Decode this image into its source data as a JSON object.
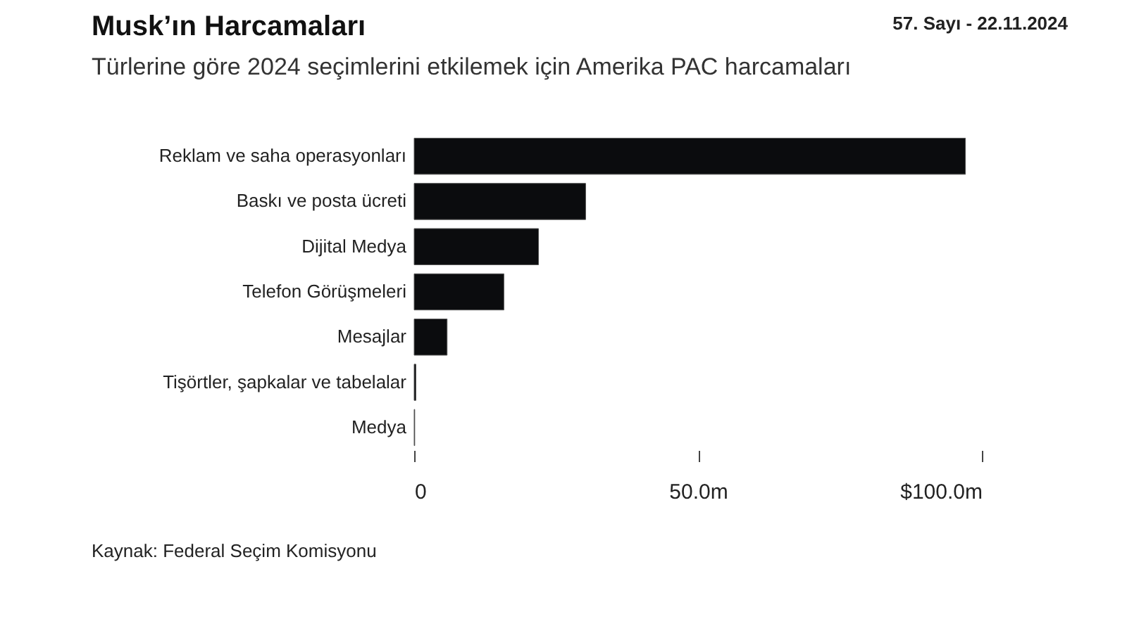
{
  "chart_data": {
    "type": "bar",
    "orientation": "horizontal",
    "title": "Musk’ın Harcamaları",
    "subtitle": "Türlerine göre 2024 seçimlerini etkilemek için Amerika PAC harcamaları",
    "categories": [
      "Reklam ve saha operasyonları",
      "Baskı ve posta ücreti",
      "Dijital Medya",
      "Telefon Görüşmeleri",
      "Mesajlar",
      "Tişörtler, şapkalar ve tabelalar",
      "Medya"
    ],
    "values": [
      97.1,
      30.2,
      21.9,
      15.8,
      5.8,
      0.3,
      0.1
    ],
    "color": "#0b0c0e",
    "xlim": [
      0,
      100
    ],
    "xticks": [
      0,
      {
        "value": 50,
        "label": "50.0m"
      },
      {
        "value": 100,
        "label": "$100.0m"
      }
    ],
    "grid": false,
    "annotations": [
      "57. Sayı - 22.11.2024",
      "Kaynak: Federal Seçim Komisyonu"
    ]
  }
}
